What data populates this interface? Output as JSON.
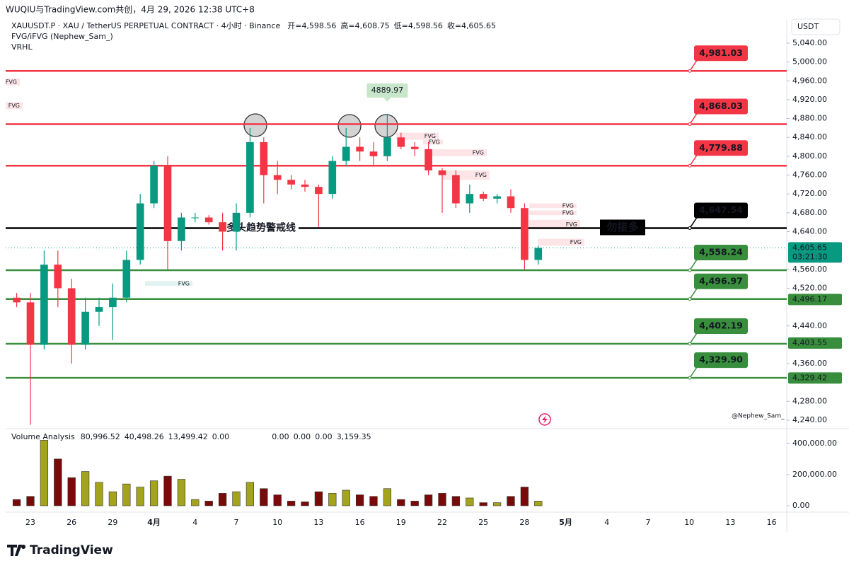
{
  "header": {
    "credit": "WUQIU与TradingView.com共创，4月 29, 2026 12:38 UTC+8",
    "symbol": "XAUUSDT.P · XAU / TetherUS PERPETUAL CONTRACT · 4小时 · Binance",
    "ohlc": [
      {
        "key": "开=",
        "value": "4,598.56"
      },
      {
        "key": "高=",
        "value": "4,608.75"
      },
      {
        "key": "低=",
        "value": "4,598.56"
      },
      {
        "key": "收=",
        "value": "4,605.65"
      }
    ],
    "indicators": [
      "FVG/iFVG (Nephew_Sam_)",
      "VRHL"
    ],
    "currency": "USDT",
    "watermark": "@Nephew_Sam_",
    "brand": "TradingView"
  },
  "chart_data": {
    "type": "candlestick",
    "open": [
      4500,
      4490,
      4400,
      4570,
      4520,
      4400,
      4470,
      4480,
      4500,
      4580,
      4700,
      4780,
      4620,
      4670,
      4670,
      4660,
      4640,
      4680,
      4830,
      4760,
      4750,
      4740,
      4735,
      4720,
      4790,
      4820,
      4810,
      4800,
      4840,
      4820,
      4815,
      4770,
      4760,
      4700,
      4720,
      4710,
      4715,
      4690,
      4580
    ],
    "high": [
      4510,
      4510,
      4600,
      4600,
      4540,
      4500,
      4500,
      4530,
      4600,
      4720,
      4790,
      4800,
      4680,
      4680,
      4675,
      4680,
      4700,
      4860,
      4840,
      4790,
      4760,
      4750,
      4740,
      4800,
      4860,
      4840,
      4830,
      4889.97,
      4850,
      4830,
      4830,
      4775,
      4770,
      4740,
      4725,
      4720,
      4730,
      4700,
      4610
    ],
    "low": [
      4480,
      4230,
      4390,
      4480,
      4360,
      4390,
      4440,
      4410,
      4490,
      4570,
      4690,
      4560,
      4600,
      4660,
      4655,
      4600,
      4600,
      4670,
      4700,
      4720,
      4730,
      4725,
      4650,
      4710,
      4780,
      4790,
      4780,
      4790,
      4815,
      4800,
      4760,
      4680,
      4690,
      4680,
      4705,
      4700,
      4680,
      4560,
      4570
    ],
    "close": [
      4490,
      4400,
      4570,
      4520,
      4400,
      4470,
      4480,
      4500,
      4580,
      4700,
      4780,
      4620,
      4670,
      4670,
      4660,
      4640,
      4680,
      4830,
      4760,
      4750,
      4740,
      4735,
      4720,
      4790,
      4820,
      4810,
      4800,
      4840,
      4820,
      4815,
      4770,
      4760,
      4700,
      4720,
      4710,
      4715,
      4690,
      4580,
      4605.65
    ],
    "up_color": "#089981",
    "down_color": "#f23645",
    "ylim": [
      4223.5,
      5089.5
    ],
    "yticks": [
      {
        "value": 5040,
        "label": "5,040.00"
      },
      {
        "value": 5000,
        "label": "5,000.00"
      },
      {
        "value": 4960,
        "label": "4,960.00"
      },
      {
        "value": 4920,
        "label": "4,920.00"
      },
      {
        "value": 4880,
        "label": "4,880.00"
      },
      {
        "value": 4840,
        "label": "4,840.00"
      },
      {
        "value": 4800,
        "label": "4,800.00"
      },
      {
        "value": 4760,
        "label": "4,760.00"
      },
      {
        "value": 4720,
        "label": "4,720.00"
      },
      {
        "value": 4680,
        "label": "4,680.00"
      },
      {
        "value": 4640,
        "label": "4,640.00"
      },
      {
        "value": 4560,
        "label": "4,560.00"
      },
      {
        "value": 4520,
        "label": "4,520.00"
      },
      {
        "value": 4440,
        "label": "4,440.00"
      },
      {
        "value": 4360,
        "label": "4,360.00"
      },
      {
        "value": 4280,
        "label": "4,280.00"
      },
      {
        "value": 4240,
        "label": "4,240.00"
      }
    ],
    "xticks": [
      "23",
      "26",
      "29",
      "4月",
      "4",
      "7",
      "10",
      "13",
      "16",
      "19",
      "22",
      "25",
      "28",
      "5月",
      "4",
      "7",
      "10",
      "13",
      "16"
    ],
    "high_label": 4889.97,
    "levels": [
      {
        "value": {
          "value": 4981.03,
          "label": "4,981.03"
        },
        "color": "#f23645"
      },
      {
        "value": {
          "value": 4868.03,
          "label": "4,868.03"
        },
        "color": "#f23645"
      },
      {
        "value": {
          "value": 4779.88,
          "label": "4,779.88"
        },
        "color": "#f23645"
      },
      {
        "value": {
          "value": 4647.54,
          "label": "4,647.54"
        },
        "color": "#000000"
      },
      {
        "value": {
          "value": 4558.24,
          "label": "4,558.24"
        },
        "color": "#388e3c"
      },
      {
        "value": {
          "value": 4496.97,
          "label": "4,496.97"
        },
        "color": "#388e3c"
      },
      {
        "value": {
          "value": 4402.19,
          "label": "4,402.19"
        },
        "color": "#388e3c"
      },
      {
        "value": {
          "value": 4329.9,
          "label": "4,329.90"
        },
        "color": "#388e3c"
      }
    ],
    "axis_badges": [
      {
        "value": 4496.17,
        "label": "4,496.17"
      },
      {
        "value": 4403.55,
        "label": "4,403.55"
      },
      {
        "value": 4329.42,
        "label": "4,329.42"
      }
    ],
    "last": {
      "value": {
        "value": 4605.65,
        "label": "4,605.65"
      },
      "countdown": "03:21:30",
      "color": "#089981"
    },
    "fvg": [
      {
        "label": "FVG",
        "top": 4965,
        "bottom": 4950,
        "color": "#f23645"
      },
      {
        "label": "FVG",
        "top": 4915,
        "bottom": 4900,
        "color": "#f23645"
      },
      {
        "label": "FVG",
        "top": 4850,
        "bottom": 4835,
        "color": "#f23645"
      },
      {
        "label": "FVG",
        "top": 4835,
        "bottom": 4825,
        "color": "#f23645"
      },
      {
        "label": "FVG",
        "top": 4815,
        "bottom": 4800,
        "color": "#f23645"
      },
      {
        "label": "FVG",
        "top": 4770,
        "bottom": 4750,
        "color": "#f23645"
      },
      {
        "label": "FVG",
        "top": 4700,
        "bottom": 4690,
        "color": "#f23645"
      },
      {
        "label": "FVG",
        "top": 4685,
        "bottom": 4675,
        "color": "#f23645"
      },
      {
        "label": "FVG",
        "top": 4665,
        "bottom": 4645,
        "color": "#f23645"
      },
      {
        "label": "FVG",
        "top": 4625,
        "bottom": 4610,
        "color": "#f23645"
      },
      {
        "label": "FVG",
        "top": 4535,
        "bottom": 4525,
        "color": "#089981"
      }
    ],
    "annotations": [
      "多头趋势警戒线",
      "勿接多"
    ],
    "volume": {
      "title": "Volume Analysis",
      "values": [
        40000,
        60000,
        420000,
        300000,
        180000,
        220000,
        150000,
        90000,
        140000,
        120000,
        160000,
        190000,
        170000,
        40000,
        30000,
        80000,
        90000,
        150000,
        110000,
        70000,
        30000,
        25000,
        90000,
        80000,
        100000,
        70000,
        60000,
        110000,
        40000,
        30000,
        70000,
        80000,
        60000,
        50000,
        20000,
        20000,
        60000,
        120000,
        30000
      ],
      "up_color": "#a3a31c",
      "down_color": "#7a0a0a",
      "ylim": [
        0,
        490000
      ],
      "yticks": [
        {
          "value": 400000,
          "label": "400,000.00"
        },
        {
          "value": 200000,
          "label": "200,000.00"
        },
        {
          "value": 0,
          "label": "0.00"
        }
      ],
      "legend": [
        {
          "text": "80,996.52",
          "color": "#f23645"
        },
        {
          "text": "40,498.26",
          "color": "#f23645"
        },
        {
          "text": "13,499.42",
          "color": "#f23645"
        },
        {
          "text": "0.00",
          "color": "#2962ff"
        },
        {
          "text": "0.00",
          "color": "#1a1aa6"
        },
        {
          "text": "0.00",
          "color": "#1a1aa6"
        },
        {
          "text": "0.00",
          "color": "#1a1aa6"
        },
        {
          "text": "3,159.35",
          "color": "#131722"
        }
      ]
    }
  }
}
